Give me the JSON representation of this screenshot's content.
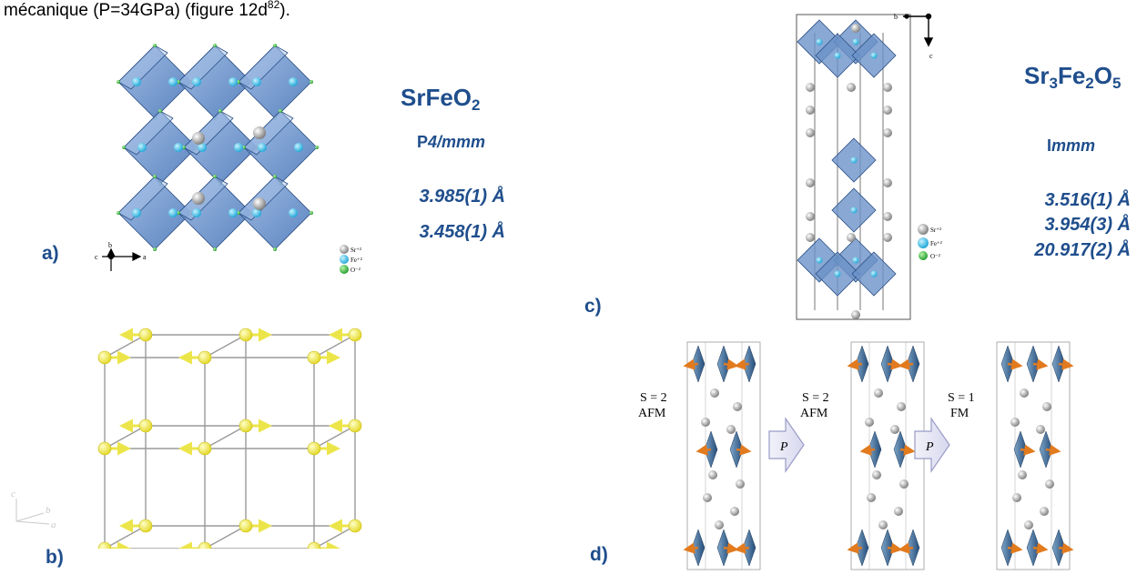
{
  "intro": {
    "text": "mécanique (P=34GPa) (figure 12d",
    "sup": "82",
    "tail": ")."
  },
  "panel_a": {
    "label": "a)",
    "formula": {
      "parts": [
        "SrFeO",
        "2",
        ""
      ]
    },
    "space_group": {
      "prefix": "P",
      "italic": "4/mmm"
    },
    "params": [
      "3.985(1) Å",
      "3.458(1) Å"
    ],
    "legend": [
      "Sr⁺²",
      "Fe⁺²",
      "O⁻²"
    ],
    "axes": {
      "b": "b",
      "c": "c",
      "a": "a"
    }
  },
  "panel_b": {
    "label": "b)",
    "axes": {
      "c": "c",
      "b": "b",
      "a": "a"
    }
  },
  "panel_c": {
    "label": "c)",
    "formula": {
      "p1": "Sr",
      "s1": "3",
      "p2": "Fe",
      "s2": "2",
      "p3": "O",
      "s3": "5"
    },
    "space_group": {
      "prefix": "I",
      "italic": "mmm"
    },
    "params": [
      "3.516(1) Å",
      "3.954(3) Å",
      "20.917(2) Å"
    ],
    "legend": [
      "Sr⁺²",
      "Fe⁺²",
      "O⁻²"
    ],
    "axes": {
      "b": "b",
      "c": "c"
    }
  },
  "panel_d": {
    "label": "d)",
    "states": [
      {
        "spin": "S = 2",
        "order": "AFM"
      },
      {
        "spin": "S = 2",
        "order": "AFM"
      },
      {
        "spin": "S = 1",
        "order": "FM"
      }
    ],
    "arrow_label": "P"
  },
  "colors": {
    "text_blue": "#1f4e8c",
    "octahedron": "#5b87c5",
    "fe": "#35b6e0",
    "sr": "#9a9a9a",
    "o": "#3ab14a",
    "spin_yellow": "#f2ea3c",
    "spin_orange": "#e47b1f"
  }
}
